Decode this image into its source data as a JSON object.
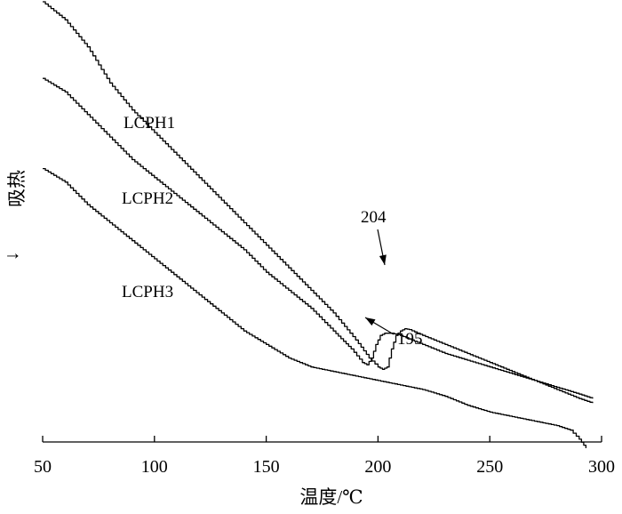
{
  "chart_data": {
    "type": "line",
    "xlabel": "温度/℃",
    "ylabel": "吸热",
    "ylabel_arrow": "↓",
    "xlim": [
      50,
      300
    ],
    "ticks": [
      50,
      100,
      150,
      200,
      250,
      300
    ],
    "tick_labels": [
      "50",
      "100",
      "150",
      "200",
      "250",
      "300"
    ],
    "series": [
      {
        "name": "LCPH1",
        "points": [
          [
            50,
            93
          ],
          [
            60,
            89
          ],
          [
            70,
            83
          ],
          [
            80,
            75
          ],
          [
            90,
            69
          ],
          [
            100,
            64
          ],
          [
            110,
            59
          ],
          [
            120,
            54
          ],
          [
            130,
            49
          ],
          [
            140,
            44
          ],
          [
            150,
            39
          ],
          [
            160,
            34
          ],
          [
            170,
            29
          ],
          [
            180,
            24
          ],
          [
            190,
            18
          ],
          [
            196,
            14
          ],
          [
            200,
            12
          ],
          [
            202,
            11.5
          ],
          [
            204,
            12
          ],
          [
            206,
            16
          ],
          [
            208,
            19
          ],
          [
            210,
            20
          ],
          [
            212,
            20.5
          ],
          [
            214,
            20.3
          ],
          [
            220,
            19
          ],
          [
            230,
            17
          ],
          [
            240,
            15
          ],
          [
            250,
            13
          ],
          [
            260,
            11
          ],
          [
            270,
            9
          ],
          [
            280,
            7
          ],
          [
            290,
            5
          ],
          [
            296,
            4
          ]
        ]
      },
      {
        "name": "LCPH2",
        "points": [
          [
            50,
            76
          ],
          [
            60,
            73
          ],
          [
            70,
            68
          ],
          [
            80,
            63
          ],
          [
            90,
            58
          ],
          [
            100,
            54
          ],
          [
            110,
            50
          ],
          [
            120,
            46
          ],
          [
            130,
            42
          ],
          [
            140,
            38
          ],
          [
            150,
            33
          ],
          [
            160,
            29
          ],
          [
            170,
            25
          ],
          [
            180,
            20
          ],
          [
            188,
            16
          ],
          [
            193,
            13
          ],
          [
            195,
            12.5
          ],
          [
            197,
            14
          ],
          [
            199,
            17
          ],
          [
            201,
            19
          ],
          [
            203,
            19.5
          ],
          [
            206,
            19.5
          ],
          [
            210,
            19
          ],
          [
            220,
            17
          ],
          [
            230,
            15
          ],
          [
            240,
            13.5
          ],
          [
            250,
            12
          ],
          [
            260,
            10.5
          ],
          [
            270,
            9
          ],
          [
            280,
            7.5
          ],
          [
            290,
            6
          ],
          [
            296,
            5
          ]
        ]
      },
      {
        "name": "LCPH3",
        "points": [
          [
            50,
            56
          ],
          [
            60,
            53
          ],
          [
            70,
            48
          ],
          [
            80,
            44
          ],
          [
            90,
            40
          ],
          [
            100,
            36
          ],
          [
            110,
            32
          ],
          [
            120,
            28
          ],
          [
            130,
            24
          ],
          [
            140,
            20
          ],
          [
            150,
            17
          ],
          [
            160,
            14
          ],
          [
            170,
            12
          ],
          [
            180,
            11
          ],
          [
            190,
            10
          ],
          [
            200,
            9
          ],
          [
            210,
            8
          ],
          [
            220,
            7
          ],
          [
            230,
            5.5
          ],
          [
            240,
            3.5
          ],
          [
            250,
            2
          ],
          [
            260,
            1
          ],
          [
            270,
            0
          ],
          [
            280,
            -1
          ],
          [
            286,
            -2
          ],
          [
            290,
            -4
          ],
          [
            293,
            -6
          ]
        ]
      }
    ],
    "annotations": [
      {
        "text": "204",
        "x": 204,
        "series": "LCPH1"
      },
      {
        "text": "195",
        "x": 195,
        "series": "LCPH2"
      }
    ]
  }
}
